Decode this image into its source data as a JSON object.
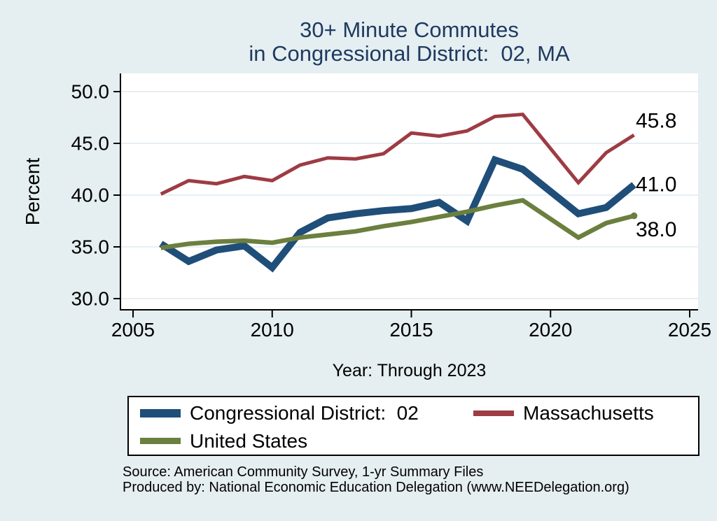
{
  "title": {
    "line1": "30+ Minute Commutes",
    "line2": "in Congressional District:  02, MA"
  },
  "chart_data": {
    "type": "line",
    "x": [
      2006,
      2007,
      2008,
      2009,
      2010,
      2011,
      2012,
      2013,
      2014,
      2015,
      2016,
      2017,
      2018,
      2019,
      2020,
      2021,
      2022,
      2023
    ],
    "series": [
      {
        "name": "Congressional District:  02",
        "color": "#1f4e79",
        "line_width": 10,
        "end_label": "41.0",
        "end_marker": "none",
        "values": [
          35.3,
          33.6,
          34.7,
          35.1,
          33.0,
          36.4,
          37.8,
          38.2,
          38.5,
          38.7,
          39.3,
          37.5,
          43.4,
          42.5,
          null,
          38.2,
          38.8,
          41.0
        ]
      },
      {
        "name": "Massachusetts",
        "color": "#9e3b43",
        "line_width": 5,
        "end_label": "45.8",
        "end_marker": "none",
        "values": [
          40.1,
          41.4,
          41.1,
          41.8,
          41.4,
          42.9,
          43.6,
          43.5,
          44.0,
          46.0,
          45.7,
          46.2,
          47.6,
          47.8,
          null,
          41.2,
          44.1,
          45.8
        ]
      },
      {
        "name": "United States",
        "color": "#6b7f3f",
        "line_width": 6.5,
        "end_label": "38.0",
        "end_marker": "dot",
        "values": [
          34.9,
          35.3,
          35.5,
          35.6,
          35.4,
          35.9,
          36.2,
          36.5,
          37.0,
          37.4,
          37.9,
          38.4,
          39.0,
          39.5,
          null,
          35.9,
          37.3,
          38.0
        ]
      }
    ],
    "title": "30+ Minute Commutes in Congressional District: 02, MA",
    "xlabel": "Year: Through 2023",
    "ylabel": "Percent",
    "xlim": [
      2005,
      2025
    ],
    "ylim": [
      30,
      50
    ],
    "xticks": [
      2005,
      2010,
      2015,
      2020,
      2025
    ],
    "yticks": [
      30,
      35,
      40,
      45,
      50
    ],
    "ytick_labels": [
      "30.0",
      "35.0",
      "40.0",
      "45.0",
      "50.0"
    ],
    "grid": true,
    "legend_position": "bottom"
  },
  "footer": {
    "source_line": "Source: American Community Survey, 1-yr Summary Files",
    "produced_line": "Produced by: National Economic Education Delegation (www.NEEDelegation.org)"
  },
  "colors": {
    "background": "#e5eef1",
    "plot_background": "#ffffff",
    "title_text": "#1e3a5f",
    "gridline": "#dfeaf0",
    "axis": "#000000",
    "district_line": "#1f4e79",
    "state_line": "#9e3b43",
    "us_line": "#6b7f3f",
    "end_label_text": "#000000"
  }
}
